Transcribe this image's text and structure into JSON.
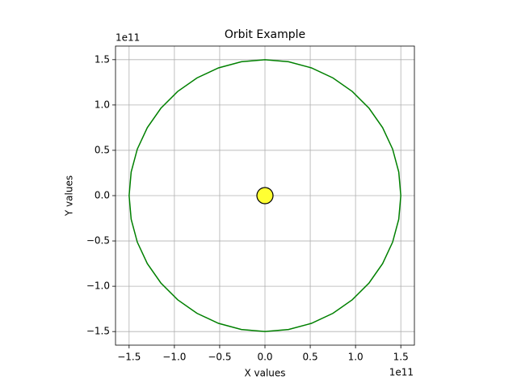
{
  "chart_data": {
    "type": "line",
    "title": "Orbit Example",
    "x_label": "X values",
    "y_label": "Y values",
    "x_offset_label": "1e11",
    "y_offset_label": "1e11",
    "grid": true,
    "xlim": [
      -165000000000.0,
      165000000000.0
    ],
    "ylim": [
      -165000000000.0,
      165000000000.0
    ],
    "xticks": [
      {
        "value": -150000000000.0,
        "label": "−1.5"
      },
      {
        "value": -100000000000.0,
        "label": "−1.0"
      },
      {
        "value": -50000000000.0,
        "label": "−0.5"
      },
      {
        "value": 0,
        "label": "0.0"
      },
      {
        "value": 50000000000.0,
        "label": "0.5"
      },
      {
        "value": 100000000000.0,
        "label": "1.0"
      },
      {
        "value": 150000000000.0,
        "label": "1.5"
      }
    ],
    "yticks": [
      {
        "value": -150000000000.0,
        "label": "−1.5"
      },
      {
        "value": -100000000000.0,
        "label": "−1.0"
      },
      {
        "value": -50000000000.0,
        "label": "−0.5"
      },
      {
        "value": 0,
        "label": "0.0"
      },
      {
        "value": 50000000000.0,
        "label": "0.5"
      },
      {
        "value": 100000000000.0,
        "label": "1.0"
      },
      {
        "value": 150000000000.0,
        "label": "1.5"
      }
    ],
    "series": [
      {
        "color": "#008000",
        "marker": "none",
        "x": [
          150000000000.0,
          147720000000.0,
          140950000000.0,
          129900000000.0,
          114910000000.0,
          96420000000.0,
          75000000000.0,
          51300000000.0,
          26050000000.0,
          0,
          -26050000000.0,
          -51300000000.0,
          -75000000000.0,
          -96420000000.0,
          -114910000000.0,
          -129900000000.0,
          -140950000000.0,
          -147720000000.0,
          -150000000000.0,
          -147720000000.0,
          -140950000000.0,
          -129900000000.0,
          -114910000000.0,
          -96420000000.0,
          -75000000000.0,
          -51300000000.0,
          -26050000000.0,
          0,
          26050000000.0,
          51300000000.0,
          75000000000.0,
          96420000000.0,
          114910000000.0,
          129900000000.0,
          140950000000.0,
          147720000000.0,
          150000000000.0
        ],
        "values": [
          0,
          26050000000.0,
          51300000000.0,
          75000000000.0,
          96420000000.0,
          114910000000.0,
          129900000000.0,
          140950000000.0,
          147720000000.0,
          150000000000.0,
          147720000000.0,
          140950000000.0,
          129900000000.0,
          114910000000.0,
          96420000000.0,
          75000000000.0,
          51300000000.0,
          26050000000.0,
          0,
          -26050000000.0,
          -51300000000.0,
          -75000000000.0,
          -96420000000.0,
          -114910000000.0,
          -129900000000.0,
          -140950000000.0,
          -147720000000.0,
          -150000000000.0,
          -147720000000.0,
          -140950000000.0,
          -129900000000.0,
          -114910000000.0,
          -96420000000.0,
          -75000000000.0,
          -51300000000.0,
          -26050000000.0,
          0
        ]
      },
      {
        "color": "#ffff33",
        "marker": "o",
        "x": [
          0
        ],
        "values": [
          0
        ]
      }
    ]
  }
}
